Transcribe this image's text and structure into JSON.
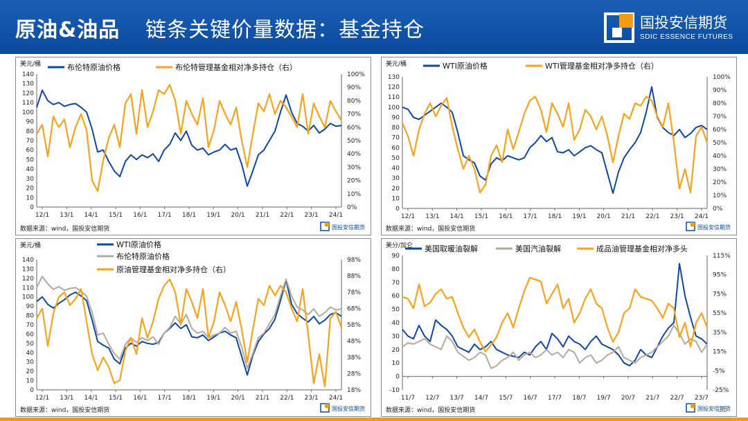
{
  "header": {
    "title_bold": "原油&油品",
    "title_rest": "链条关键价量数据：基金持仓",
    "logo_cn": "国投安信期货",
    "logo_en": "SDIC ESSENCE FUTURES"
  },
  "footer": {
    "page": "15"
  },
  "colors": {
    "blue": "#0d47a1",
    "orange": "#f7a21b",
    "gray": "#b5a89f"
  },
  "chart_data": [
    {
      "type": "line",
      "unit_left": "美元/桶",
      "source": "数据来源：wind，国投安信期货",
      "logo_small": "国投安信期货",
      "x_ticks": [
        "12/1",
        "13/1",
        "14/1",
        "15/1",
        "16/1",
        "17/1",
        "18/1",
        "19/1",
        "20/1",
        "21/1",
        "22/1",
        "23/1",
        "24/1"
      ],
      "ylim_left": [
        0,
        140
      ],
      "yticks_left": [
        "0",
        "10",
        "20",
        "30",
        "40",
        "50",
        "60",
        "70",
        "80",
        "90",
        "100",
        "110",
        "120",
        "130",
        "140"
      ],
      "ylim_right": [
        0,
        100
      ],
      "yticks_right": [
        "0%",
        "10%",
        "20%",
        "30%",
        "40%",
        "50%",
        "60%",
        "70%",
        "80%",
        "90%",
        "100%"
      ],
      "series": [
        {
          "name": "布伦特原油价格",
          "axis": "left",
          "color": "blue",
          "values": [
            105,
            123,
            112,
            108,
            110,
            106,
            108,
            109,
            105,
            100,
            82,
            58,
            60,
            48,
            38,
            32,
            48,
            55,
            50,
            55,
            52,
            56,
            48,
            60,
            66,
            78,
            70,
            80,
            65,
            60,
            62,
            55,
            58,
            60,
            66,
            60,
            62,
            45,
            22,
            38,
            55,
            60,
            70,
            80,
            100,
            118,
            100,
            88,
            85,
            80,
            86,
            78,
            82,
            88,
            85,
            86
          ]
        },
        {
          "name": "布伦特管理基金相对净多持仓（右）",
          "axis": "right",
          "color": "orange",
          "values": [
            55,
            62,
            38,
            68,
            60,
            66,
            45,
            60,
            70,
            58,
            20,
            12,
            35,
            52,
            62,
            45,
            78,
            85,
            55,
            88,
            60,
            72,
            88,
            85,
            92,
            80,
            55,
            80,
            70,
            62,
            82,
            45,
            58,
            80,
            70,
            62,
            75,
            50,
            30,
            55,
            78,
            72,
            85,
            70,
            80,
            75,
            68,
            60,
            85,
            55,
            78,
            68,
            60,
            80,
            72,
            65
          ]
        }
      ]
    },
    {
      "type": "line",
      "unit_left": "美元/桶",
      "source": "数据来源：wind，国投安信期货",
      "logo_small": "国投安信期货",
      "x_ticks": [
        "12/1",
        "13/1",
        "14/1",
        "15/1",
        "16/1",
        "17/1",
        "18/1",
        "19/1",
        "20/1",
        "21/1",
        "22/1",
        "23/1",
        "24/1"
      ],
      "ylim_left": [
        0,
        130
      ],
      "yticks_left": [
        "0",
        "10",
        "20",
        "30",
        "40",
        "50",
        "60",
        "70",
        "80",
        "90",
        "100",
        "110",
        "120",
        "130"
      ],
      "ylim_right": [
        0,
        100
      ],
      "yticks_right": [
        "0%",
        "10%",
        "20%",
        "30%",
        "40%",
        "50%",
        "60%",
        "70%",
        "80%",
        "90%",
        "100%"
      ],
      "series": [
        {
          "name": "WTI原油价格",
          "axis": "left",
          "color": "blue",
          "values": [
            100,
            98,
            90,
            88,
            92,
            96,
            100,
            104,
            100,
            95,
            75,
            52,
            48,
            45,
            32,
            28,
            44,
            50,
            47,
            52,
            50,
            48,
            50,
            60,
            65,
            72,
            66,
            70,
            56,
            55,
            58,
            52,
            56,
            60,
            62,
            58,
            55,
            35,
            15,
            36,
            50,
            58,
            65,
            75,
            95,
            120,
            90,
            80,
            75,
            72,
            78,
            70,
            74,
            80,
            82,
            78
          ]
        },
        {
          "name": "WTI管理基金相对净多持仓（右）",
          "axis": "right",
          "color": "orange",
          "values": [
            65,
            55,
            40,
            60,
            72,
            80,
            70,
            78,
            84,
            62,
            45,
            30,
            40,
            30,
            12,
            18,
            40,
            48,
            35,
            60,
            45,
            58,
            72,
            82,
            85,
            75,
            58,
            80,
            72,
            62,
            80,
            52,
            60,
            75,
            70,
            60,
            70,
            55,
            35,
            55,
            72,
            68,
            80,
            78,
            85,
            82,
            70,
            62,
            80,
            50,
            15,
            30,
            12,
            55,
            62,
            50
          ]
        }
      ]
    },
    {
      "type": "line",
      "unit_left": "美元/桶",
      "source": "数据来源：wind，国投安信期货",
      "logo_small": "国投安信期货",
      "x_ticks": [
        "12/1",
        "13/1",
        "14/1",
        "15/1",
        "16/1",
        "17/1",
        "18/1",
        "19/1",
        "20/1",
        "21/1",
        "22/1",
        "23/1",
        "24/1"
      ],
      "ylim_left": [
        0,
        140
      ],
      "yticks_left": [
        "0",
        "10",
        "20",
        "30",
        "40",
        "50",
        "60",
        "70",
        "80",
        "90",
        "100",
        "110",
        "120",
        "130",
        "140"
      ],
      "ylim_right": [
        18,
        98
      ],
      "yticks_right": [
        "18%",
        "28%",
        "38%",
        "48%",
        "58%",
        "68%",
        "78%",
        "88%",
        "98%"
      ],
      "series": [
        {
          "name": "WTI原油价格",
          "axis": "left",
          "color": "blue",
          "values": [
            95,
            100,
            92,
            88,
            93,
            97,
            102,
            105,
            101,
            96,
            75,
            52,
            48,
            45,
            33,
            28,
            45,
            50,
            47,
            52,
            50,
            49,
            51,
            61,
            66,
            72,
            66,
            70,
            57,
            56,
            59,
            53,
            57,
            61,
            63,
            59,
            56,
            36,
            16,
            37,
            52,
            60,
            66,
            76,
            96,
            118,
            92,
            82,
            77,
            73,
            79,
            71,
            75,
            81,
            83,
            79
          ]
        },
        {
          "name": "布伦特原油价格",
          "axis": "left",
          "color": "gray",
          "values": [
            110,
            122,
            114,
            108,
            111,
            107,
            109,
            110,
            106,
            101,
            83,
            59,
            61,
            49,
            39,
            33,
            49,
            56,
            51,
            56,
            53,
            57,
            49,
            61,
            67,
            79,
            71,
            81,
            66,
            61,
            63,
            56,
            59,
            61,
            67,
            61,
            63,
            46,
            23,
            39,
            56,
            61,
            71,
            81,
            101,
            119,
            101,
            89,
            86,
            81,
            87,
            79,
            83,
            89,
            86,
            87
          ]
        },
        {
          "name": "原油管理基金相对净多持仓（右）",
          "axis": "right",
          "color": "orange",
          "values": [
            62,
            68,
            45,
            65,
            75,
            78,
            70,
            74,
            80,
            60,
            40,
            30,
            38,
            32,
            22,
            24,
            42,
            50,
            40,
            62,
            50,
            60,
            74,
            82,
            86,
            78,
            58,
            80,
            72,
            62,
            80,
            50,
            60,
            78,
            70,
            60,
            72,
            55,
            35,
            55,
            74,
            70,
            82,
            76,
            82,
            78,
            68,
            60,
            80,
            52,
            22,
            40,
            20,
            62,
            66,
            56
          ]
        }
      ]
    },
    {
      "type": "line",
      "unit_left": "美分/加仑",
      "source": "数据来源：wind，国投安信期货",
      "logo_small": "国投安信期货",
      "x_ticks": [
        "11/7",
        "12/7",
        "13/7",
        "14/7",
        "15/7",
        "16/7",
        "17/7",
        "18/7",
        "19/7",
        "20/7",
        "21/7",
        "22/7",
        "23/7"
      ],
      "ylim_left": [
        -10,
        90
      ],
      "yticks_left": [
        "-10",
        "0",
        "10",
        "20",
        "30",
        "40",
        "50",
        "60",
        "70",
        "80",
        "90"
      ],
      "ylim_right": [
        -25,
        115
      ],
      "yticks_right": [
        "-25%",
        "-5%",
        "15%",
        "35%",
        "55%",
        "75%",
        "95%",
        "115%"
      ],
      "series": [
        {
          "name": "美国取暖油裂解",
          "axis": "left",
          "color": "blue",
          "values": [
            35,
            30,
            28,
            38,
            30,
            26,
            42,
            38,
            35,
            30,
            22,
            20,
            18,
            24,
            20,
            22,
            26,
            20,
            18,
            16,
            15,
            14,
            18,
            16,
            22,
            26,
            20,
            32,
            28,
            22,
            30,
            26,
            24,
            20,
            26,
            30,
            24,
            22,
            20,
            16,
            10,
            8,
            12,
            20,
            16,
            14,
            22,
            30,
            36,
            40,
            84,
            60,
            44,
            30,
            28,
            24
          ]
        },
        {
          "name": "美国汽油裂解",
          "axis": "left",
          "color": "gray",
          "values": [
            22,
            25,
            24,
            26,
            28,
            24,
            22,
            20,
            30,
            26,
            18,
            15,
            12,
            14,
            18,
            16,
            6,
            8,
            12,
            14,
            18,
            12,
            16,
            18,
            14,
            16,
            20,
            16,
            18,
            14,
            20,
            18,
            10,
            14,
            16,
            10,
            12,
            16,
            18,
            22,
            14,
            12,
            10,
            14,
            16,
            18,
            22,
            26,
            30,
            38,
            32,
            24,
            28,
            26,
            18,
            24
          ]
        },
        {
          "name": "成品油管理基金相对净多头",
          "axis": "right",
          "color": "orange",
          "values": [
            72,
            70,
            60,
            85,
            62,
            66,
            75,
            80,
            70,
            72,
            55,
            40,
            30,
            38,
            25,
            15,
            22,
            30,
            45,
            55,
            40,
            60,
            78,
            92,
            90,
            88,
            65,
            75,
            85,
            60,
            70,
            45,
            55,
            70,
            80,
            65,
            60,
            40,
            25,
            35,
            55,
            60,
            80,
            72,
            70,
            68,
            60,
            50,
            65,
            60,
            30,
            45,
            20,
            45,
            55,
            40
          ]
        }
      ]
    }
  ]
}
